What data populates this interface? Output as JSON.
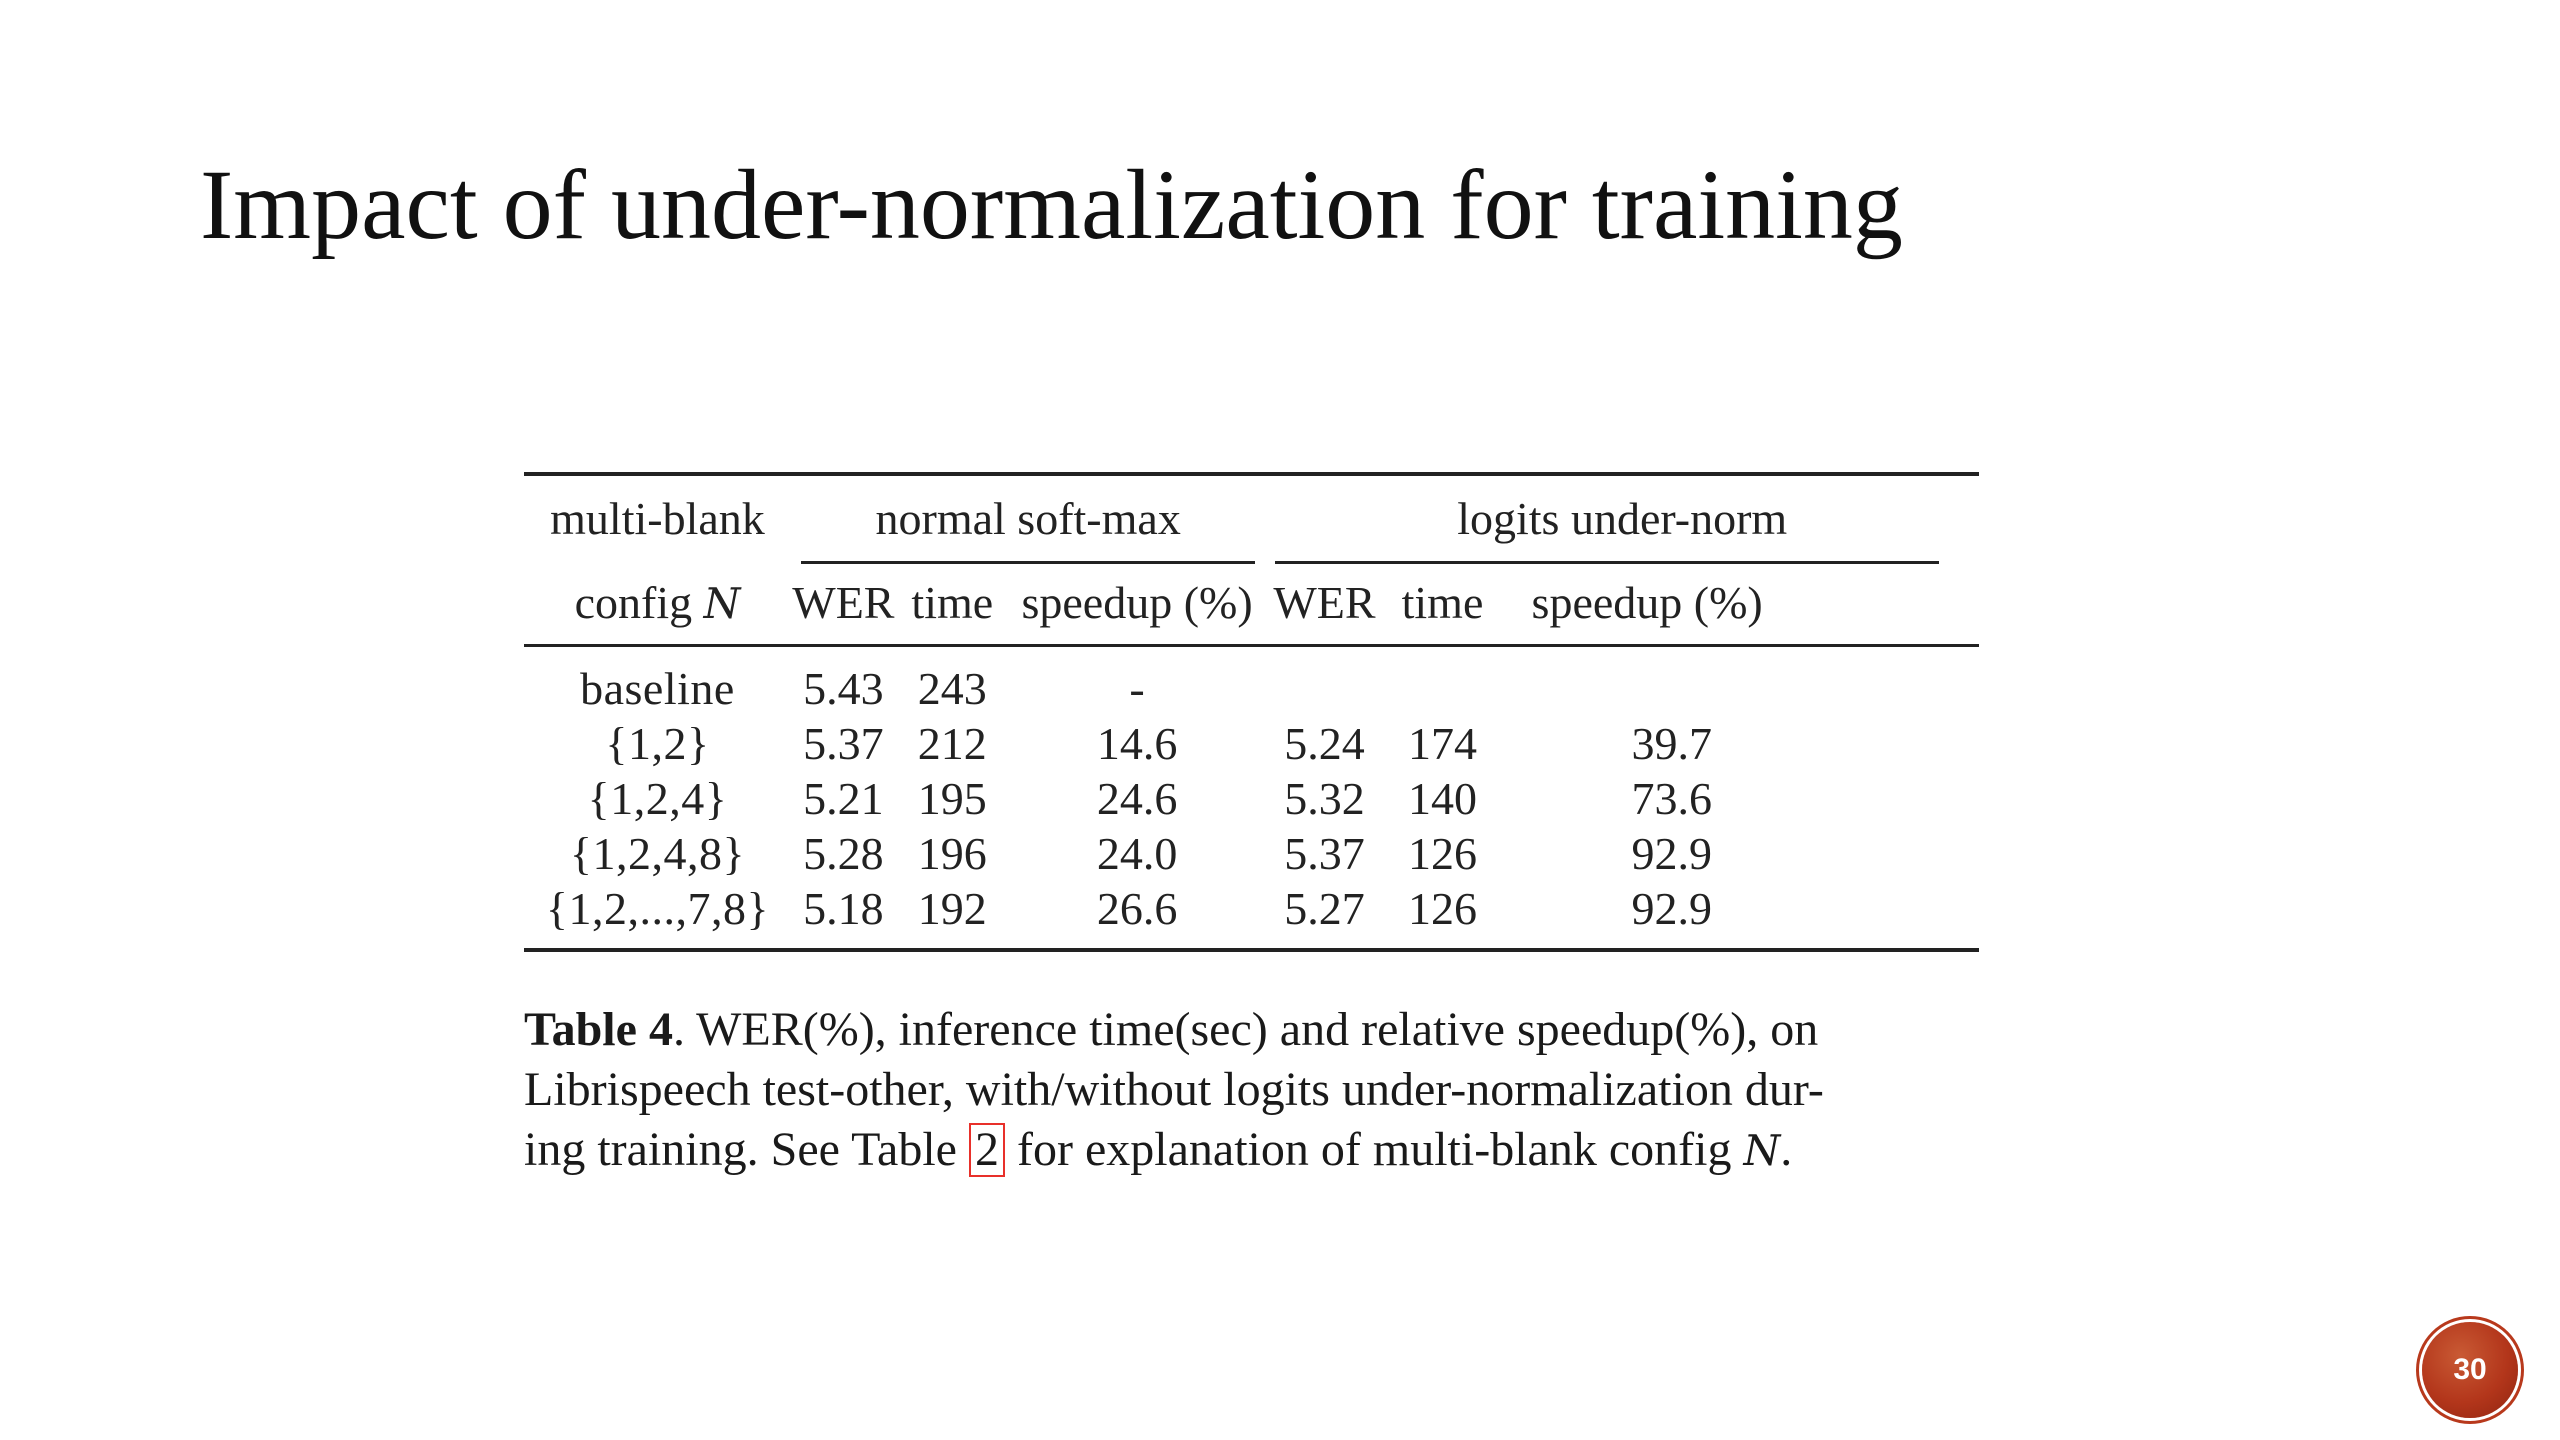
{
  "slide": {
    "title": "Impact of under-normalization for training",
    "page_number": "30"
  },
  "table": {
    "header_row1": {
      "config": "multi-blank",
      "group_softmax": "normal soft-max",
      "group_undernorm": "logits under-norm"
    },
    "header_row2": {
      "config_prefix": "config",
      "config_symbol": "N",
      "columns": [
        "WER",
        "time",
        "speedup (%)",
        "WER",
        "time",
        "speedup (%)"
      ]
    },
    "rows": [
      {
        "config": "baseline",
        "wer1": "5.43",
        "time1": "243",
        "speed1": "-",
        "wer2": "",
        "time2": "",
        "speed2": ""
      },
      {
        "config": "{1,2}",
        "wer1": "5.37",
        "time1": "212",
        "speed1": "14.6",
        "wer2": "5.24",
        "time2": "174",
        "speed2": "39.7"
      },
      {
        "config": "{1,2,4}",
        "wer1": "5.21",
        "time1": "195",
        "speed1": "24.6",
        "wer2": "5.32",
        "time2": "140",
        "speed2": "73.6"
      },
      {
        "config": "{1,2,4,8}",
        "wer1": "5.28",
        "time1": "196",
        "speed1": "24.0",
        "wer2": "5.37",
        "time2": "126",
        "speed2": "92.9"
      },
      {
        "config": "{1,2,...,7,8}",
        "wer1": "5.18",
        "time1": "192",
        "speed1": "26.6",
        "wer2": "5.27",
        "time2": "126",
        "speed2": "92.9"
      }
    ]
  },
  "caption": {
    "label": "Table 4",
    "line1": ". WER(%), inference time(sec) and relative speedup(%), on",
    "line2": "Librispeech test-other, with/without logits under-normalization dur-",
    "line3_pre": "ing training. See Table ",
    "ref": "2",
    "line3_post": " for explanation of multi-blank config ",
    "symbol": "N",
    "end": "."
  },
  "colors": {
    "ref_box": "#e8302a",
    "badge": "#b3361b"
  }
}
